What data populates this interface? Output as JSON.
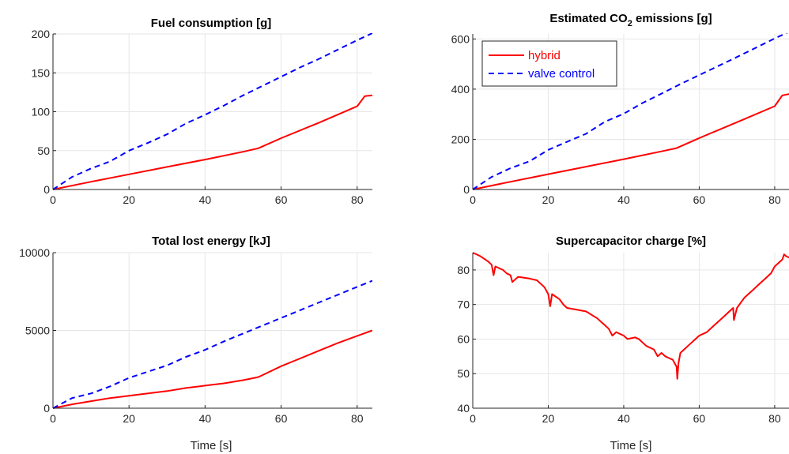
{
  "colors": {
    "hybrid": "#ff0000",
    "valve_control": "#0000ff",
    "grid": "#e6e6e6",
    "axis": "#262626"
  },
  "legend": {
    "placement": "top-left",
    "entries": [
      "hybrid",
      "valve control"
    ]
  },
  "chart_data": [
    {
      "type": "line",
      "title": "Fuel consumption [g]",
      "xlabel": "",
      "ylabel": "",
      "xlim": [
        0,
        84
      ],
      "ylim": [
        0,
        200
      ],
      "xticks": [
        0,
        20,
        40,
        60,
        80
      ],
      "yticks": [
        0,
        50,
        100,
        150,
        200
      ],
      "grid": true,
      "series": [
        {
          "name": "hybrid",
          "style": "solid",
          "x": [
            0,
            10,
            20,
            30,
            40,
            50,
            54,
            60,
            70,
            80,
            82,
            84
          ],
          "y": [
            0,
            10,
            19.5,
            29,
            38.5,
            48.5,
            53,
            66,
            86,
            107,
            120,
            121
          ]
        },
        {
          "name": "valve control",
          "style": "dashed",
          "x": [
            0,
            5,
            10,
            15,
            20,
            25,
            30,
            35,
            40,
            45,
            50,
            55,
            60,
            65,
            70,
            75,
            80,
            84
          ],
          "y": [
            0,
            16,
            27,
            36,
            50,
            60,
            71,
            85,
            96,
            108,
            121,
            133,
            145,
            157,
            168,
            180,
            192,
            201
          ]
        }
      ]
    },
    {
      "type": "line",
      "title": "Estimated CO",
      "title_sub": "2",
      "title_rest": " emissions [g]",
      "xlabel": "",
      "ylabel": "",
      "xlim": [
        0,
        84
      ],
      "ylim": [
        0,
        620
      ],
      "xticks": [
        0,
        20,
        40,
        60,
        80
      ],
      "yticks": [
        0,
        200,
        400,
        600
      ],
      "grid": true,
      "series": [
        {
          "name": "hybrid",
          "style": "solid",
          "x": [
            0,
            10,
            20,
            30,
            40,
            50,
            54,
            60,
            70,
            80,
            82,
            84
          ],
          "y": [
            0,
            31,
            61,
            91,
            121,
            152,
            165,
            205,
            268,
            332,
            375,
            381
          ]
        },
        {
          "name": "valve control",
          "style": "dashed",
          "x": [
            0,
            5,
            10,
            15,
            20,
            25,
            30,
            35,
            40,
            45,
            50,
            55,
            60,
            65,
            70,
            75,
            80,
            84
          ],
          "y": [
            0,
            50,
            85,
            112,
            158,
            190,
            222,
            270,
            302,
            345,
            382,
            420,
            456,
            492,
            528,
            565,
            602,
            630
          ]
        }
      ]
    },
    {
      "type": "line",
      "title": "Total lost energy [kJ]",
      "xlabel": "Time [s]",
      "ylabel": "",
      "xlim": [
        0,
        84
      ],
      "ylim": [
        0,
        10000
      ],
      "xticks": [
        0,
        20,
        40,
        60,
        80
      ],
      "yticks": [
        0,
        5000,
        10000
      ],
      "grid": true,
      "series": [
        {
          "name": "hybrid",
          "style": "solid",
          "x": [
            0,
            5,
            10,
            15,
            20,
            25,
            30,
            35,
            40,
            45,
            50,
            54,
            60,
            65,
            70,
            75,
            80,
            84
          ],
          "y": [
            0,
            250,
            450,
            650,
            800,
            950,
            1100,
            1300,
            1450,
            1600,
            1800,
            2000,
            2700,
            3200,
            3700,
            4200,
            4650,
            5000
          ]
        },
        {
          "name": "valve control",
          "style": "dashed",
          "x": [
            0,
            5,
            10,
            15,
            20,
            25,
            30,
            35,
            40,
            45,
            50,
            55,
            60,
            65,
            70,
            75,
            80,
            84
          ],
          "y": [
            0,
            650,
            950,
            1400,
            1950,
            2350,
            2750,
            3300,
            3750,
            4300,
            4800,
            5300,
            5800,
            6300,
            6800,
            7300,
            7800,
            8200
          ]
        }
      ]
    },
    {
      "type": "line",
      "title": "Supercapacitor charge [%]",
      "xlabel": "Time [s]",
      "ylabel": "",
      "xlim": [
        0,
        84
      ],
      "ylim": [
        40,
        85
      ],
      "xticks": [
        0,
        20,
        40,
        60,
        80
      ],
      "yticks": [
        40,
        50,
        60,
        70,
        80
      ],
      "grid": true,
      "series": [
        {
          "name": "hybrid",
          "style": "solid",
          "x": [
            0,
            2,
            4,
            5,
            5.5,
            6,
            8,
            9,
            10,
            10.5,
            12,
            15,
            17,
            19,
            20,
            20.5,
            21,
            23,
            24,
            25,
            30,
            33,
            34,
            35,
            36,
            37,
            38,
            40,
            41,
            43,
            44,
            45,
            46,
            48,
            49,
            50,
            51,
            52,
            53,
            54,
            54.2,
            54.5,
            55,
            57,
            60,
            62,
            64,
            66,
            68,
            69,
            69.2,
            70,
            72,
            74,
            76,
            78,
            79,
            80,
            81,
            82,
            82.5,
            83,
            84
          ],
          "y": [
            85,
            84,
            82.5,
            81.5,
            78.5,
            81,
            80,
            79,
            78.5,
            76.5,
            78,
            77.5,
            77,
            75,
            73,
            69.5,
            73,
            71.5,
            70,
            69,
            68,
            66,
            65,
            64,
            63,
            61,
            62,
            61,
            60,
            60.5,
            60,
            59,
            58,
            57,
            55,
            56,
            55,
            54.5,
            54,
            52,
            48.5,
            53,
            56,
            58,
            61,
            62,
            64,
            66,
            68,
            69,
            65.5,
            69,
            72,
            74,
            76,
            78,
            79,
            81,
            82,
            83,
            84.5,
            84,
            83.5
          ]
        }
      ]
    }
  ]
}
